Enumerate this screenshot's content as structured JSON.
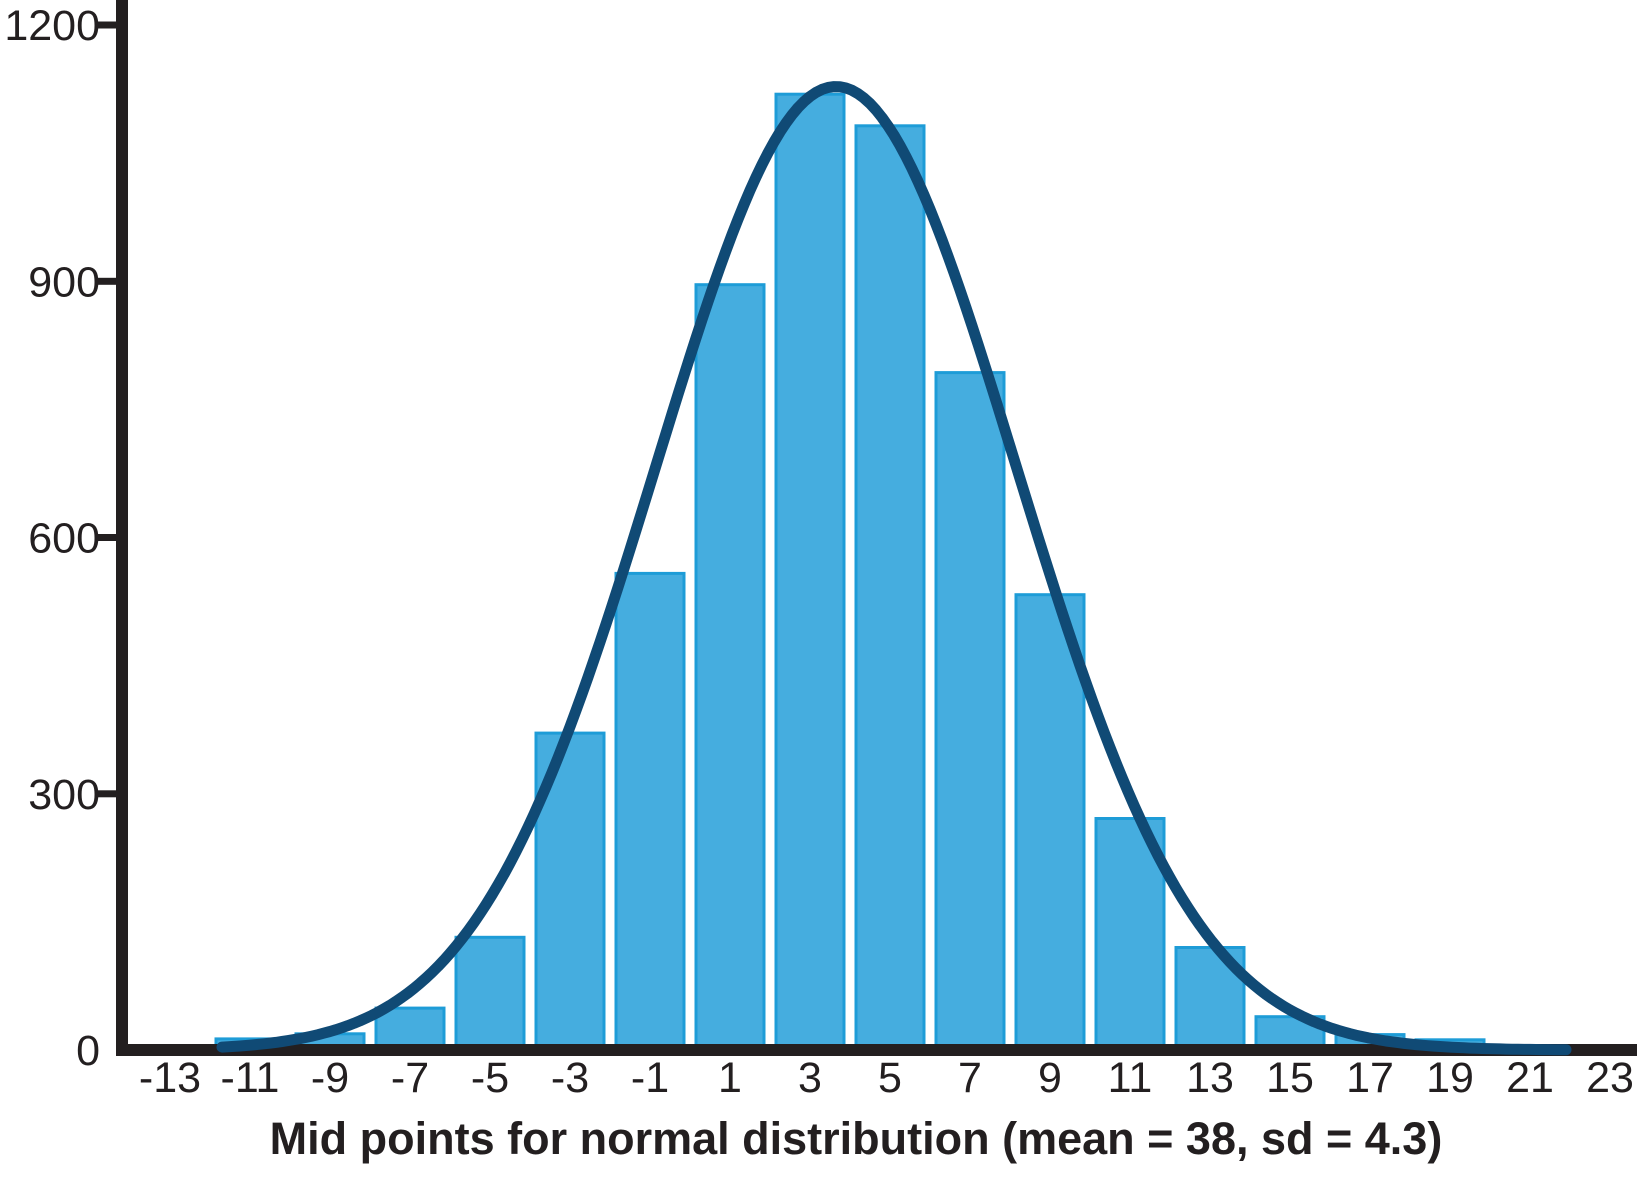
{
  "chart_data": {
    "type": "bar",
    "subtype": "histogram with normal curve overlay",
    "title": "",
    "xlabel": "Mid points for normal distribution (mean = 38, sd = 4.3)",
    "ylabel": "",
    "x_tick_labels": [
      -13,
      -11,
      -9,
      -7,
      -5,
      -3,
      -1,
      1,
      3,
      5,
      7,
      9,
      11,
      13,
      15,
      17,
      19,
      21,
      23
    ],
    "y_ticks": [
      0,
      300,
      600,
      900,
      1200
    ],
    "ylim": [
      0,
      1200
    ],
    "xlim": [
      -14.2,
      23.7
    ],
    "grid": "off",
    "legend": "none",
    "bars": {
      "bin_width": 2,
      "midpoints": [
        -11,
        -9,
        -7,
        -5,
        -3,
        -1,
        1,
        3,
        5,
        7,
        9,
        11,
        13,
        15,
        17,
        19
      ],
      "frequencies": [
        13,
        19,
        49,
        132,
        371,
        558,
        896,
        1119,
        1082,
        793,
        533,
        271,
        120,
        39,
        18,
        12
      ]
    },
    "curve": {
      "shape": "normal",
      "peak_height": 1128,
      "peak_at_x": 3.65,
      "sd_in_x_units": 4.5,
      "x_start": -11.7,
      "x_end": 22.0
    },
    "colors": {
      "bar_fill": "#45ADDF",
      "bar_edge": "#1E9CD7",
      "curve": "#104A75",
      "axis": "#231F20",
      "background": "#FFFFFF"
    }
  }
}
